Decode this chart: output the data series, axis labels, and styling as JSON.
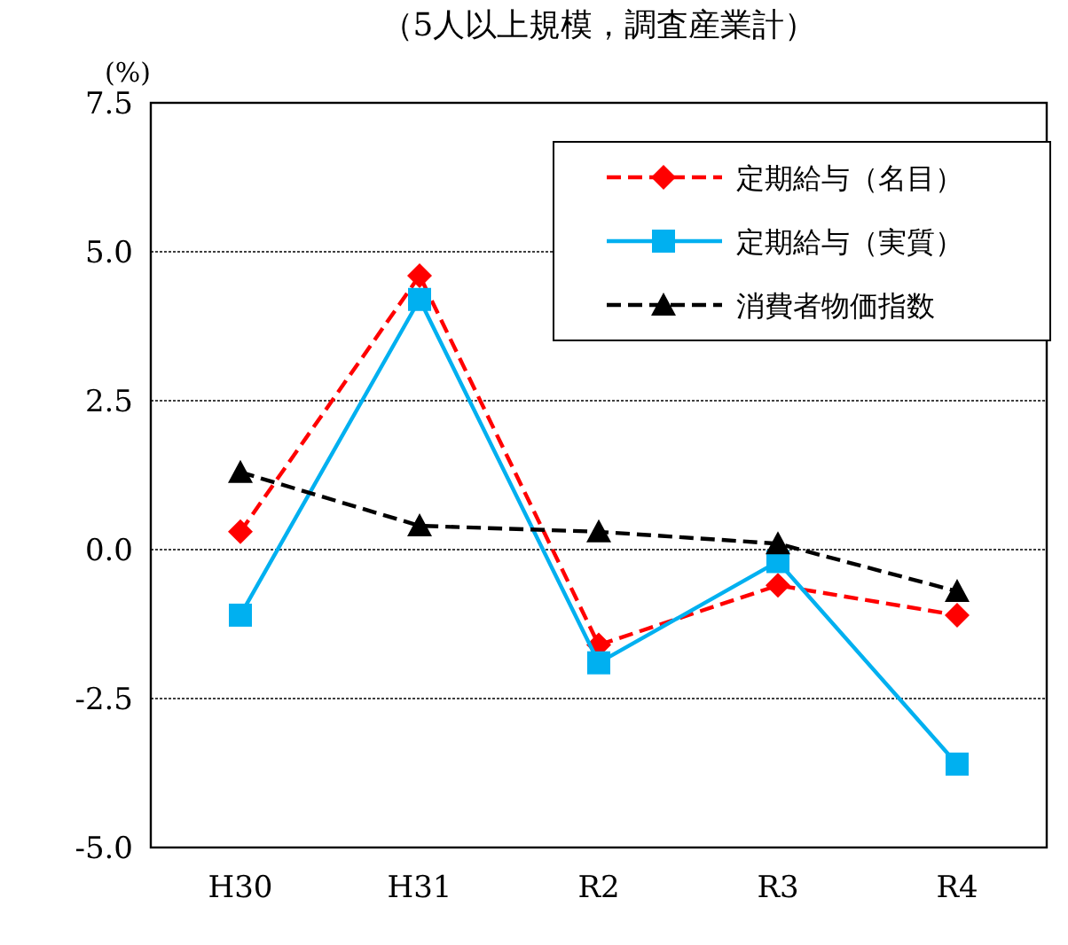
{
  "chart_data": {
    "type": "line",
    "subtitle": "（5人以上規模，調査産業計）",
    "ylabel": "(%)",
    "categories": [
      "H30",
      "H31",
      "R2",
      "R3",
      "R4"
    ],
    "series": [
      {
        "name": "定期給与（名目）",
        "color": "#ff0000",
        "values": [
          0.3,
          4.6,
          -1.6,
          -0.6,
          -1.1
        ],
        "marker": "diamond",
        "line_style": "dashed"
      },
      {
        "name": "定期給与（実質）",
        "color": "#00b0f0",
        "values": [
          -1.1,
          4.2,
          -1.9,
          -0.2,
          -3.6
        ],
        "marker": "square",
        "line_style": "solid"
      },
      {
        "name": "消費者物価指数",
        "color": "#000000",
        "values": [
          1.3,
          0.4,
          0.3,
          0.1,
          -0.7
        ],
        "marker": "triangle",
        "line_style": "dashed"
      }
    ],
    "ylim": [
      -5,
      7.5
    ],
    "yticks": [
      {
        "value": 7.5,
        "label": "7.5"
      },
      {
        "value": 5,
        "label": "5.0"
      },
      {
        "value": 2.5,
        "label": "2.5"
      },
      {
        "value": 0,
        "label": "0.0"
      },
      {
        "value": -2.5,
        "label": "-2.5"
      },
      {
        "value": -5,
        "label": "-5.0"
      }
    ],
    "grid": "y",
    "legend": "top right"
  }
}
